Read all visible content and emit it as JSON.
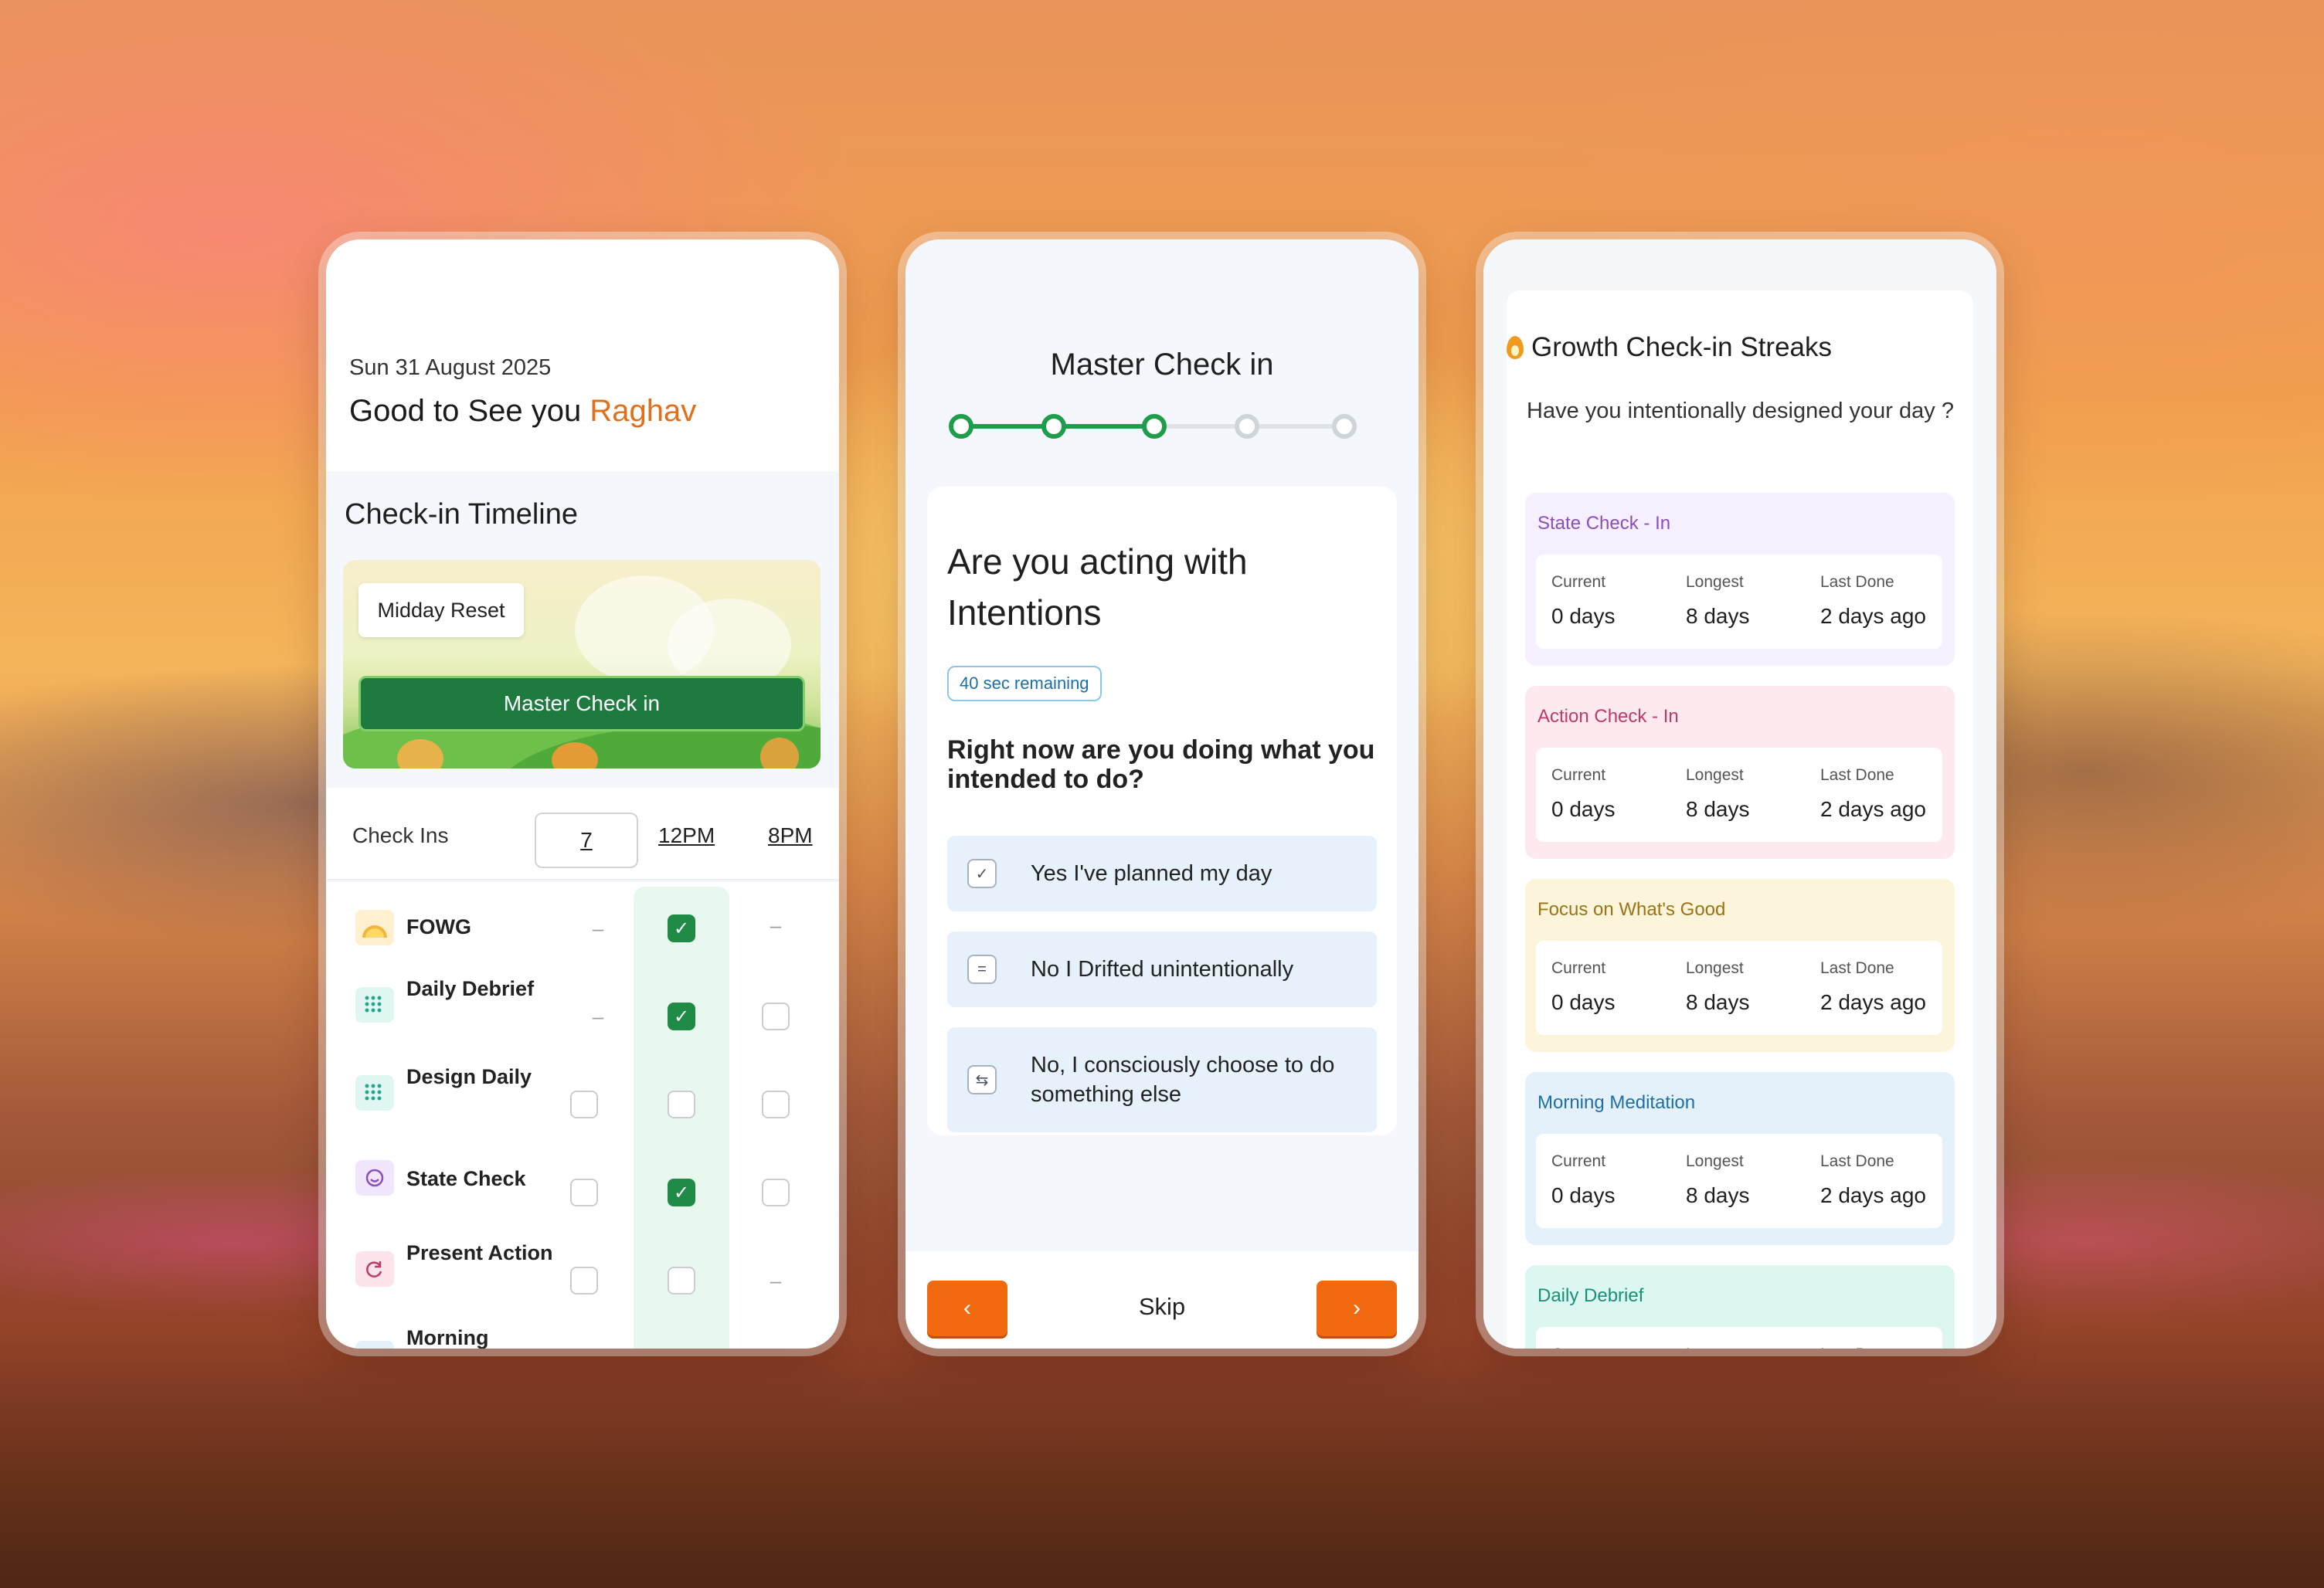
{
  "card1": {
    "date": "Sun 31 August 2025",
    "greeting": "Good to See you",
    "user_name": "Raghav",
    "section_title": "Check-in Timeline",
    "midday_label": "Midday Reset",
    "master_checkin_label": "Master Check in",
    "checkins_label": "Check Ins",
    "columns": [
      "7",
      "12PM",
      "8PM"
    ],
    "rows": [
      {
        "label": "FOWG",
        "icon": "sunrise-icon",
        "cells": [
          "dash",
          "checked",
          "dash"
        ]
      },
      {
        "label": "Daily Debrief",
        "icon": "grid-icon",
        "cells": [
          "dash",
          "checked",
          "empty"
        ]
      },
      {
        "label": "Design Daily",
        "icon": "grid-icon",
        "cells": [
          "empty",
          "empty",
          "empty"
        ]
      },
      {
        "label": "State Check",
        "icon": "smile-icon",
        "cells": [
          "empty",
          "checked",
          "empty"
        ]
      },
      {
        "label": "Present Action",
        "icon": "refresh-icon",
        "cells": [
          "empty",
          "empty",
          "dash"
        ]
      },
      {
        "label": "Morning",
        "icon": "grid-icon",
        "cells": []
      }
    ]
  },
  "card2": {
    "title": "Master Check in",
    "progress": {
      "total_steps": 5,
      "completed_steps": 3
    },
    "heading": "Are you acting with Intentions",
    "timer": "40 sec remaining",
    "question": "Right now are you doing what you intended to do?",
    "options": [
      {
        "text": "Yes I've planned my day",
        "icon": "check-icon"
      },
      {
        "text": "No I Drifted unintentionally",
        "icon": "equals-icon"
      },
      {
        "text": "No,  I consciously choose to do something else",
        "icon": "swap-icon"
      }
    ],
    "prev_label": "‹",
    "skip_label": "Skip",
    "next_label": "›"
  },
  "card3": {
    "title": "Growth Check-in Streaks",
    "question": "Have you intentionally designed your day ?",
    "stat_labels": [
      "Current",
      "Longest",
      "Last Done"
    ],
    "streaks": [
      {
        "name": "State Check - In",
        "current": "0 days",
        "longest": "8 days",
        "last_done": "2 days ago",
        "bg": "#f6efff",
        "color": "#8a4fb8"
      },
      {
        "name": "Action Check - In",
        "current": "0 days",
        "longest": "8 days",
        "last_done": "2 days ago",
        "bg": "#fde9ee",
        "color": "#c0396b"
      },
      {
        "name": "Focus on What's Good",
        "current": "0 days",
        "longest": "8 days",
        "last_done": "2 days ago",
        "bg": "#fdf4dc",
        "color": "#9a7414"
      },
      {
        "name": "Morning Meditation",
        "current": "0 days",
        "longest": "8 days",
        "last_done": "2 days ago",
        "bg": "#e4f1fb",
        "color": "#1e6fa8"
      },
      {
        "name": "Daily Debrief",
        "current": "",
        "longest": "",
        "last_done": "",
        "bg": "#dcf7f1",
        "color": "#1a8f78"
      }
    ]
  }
}
